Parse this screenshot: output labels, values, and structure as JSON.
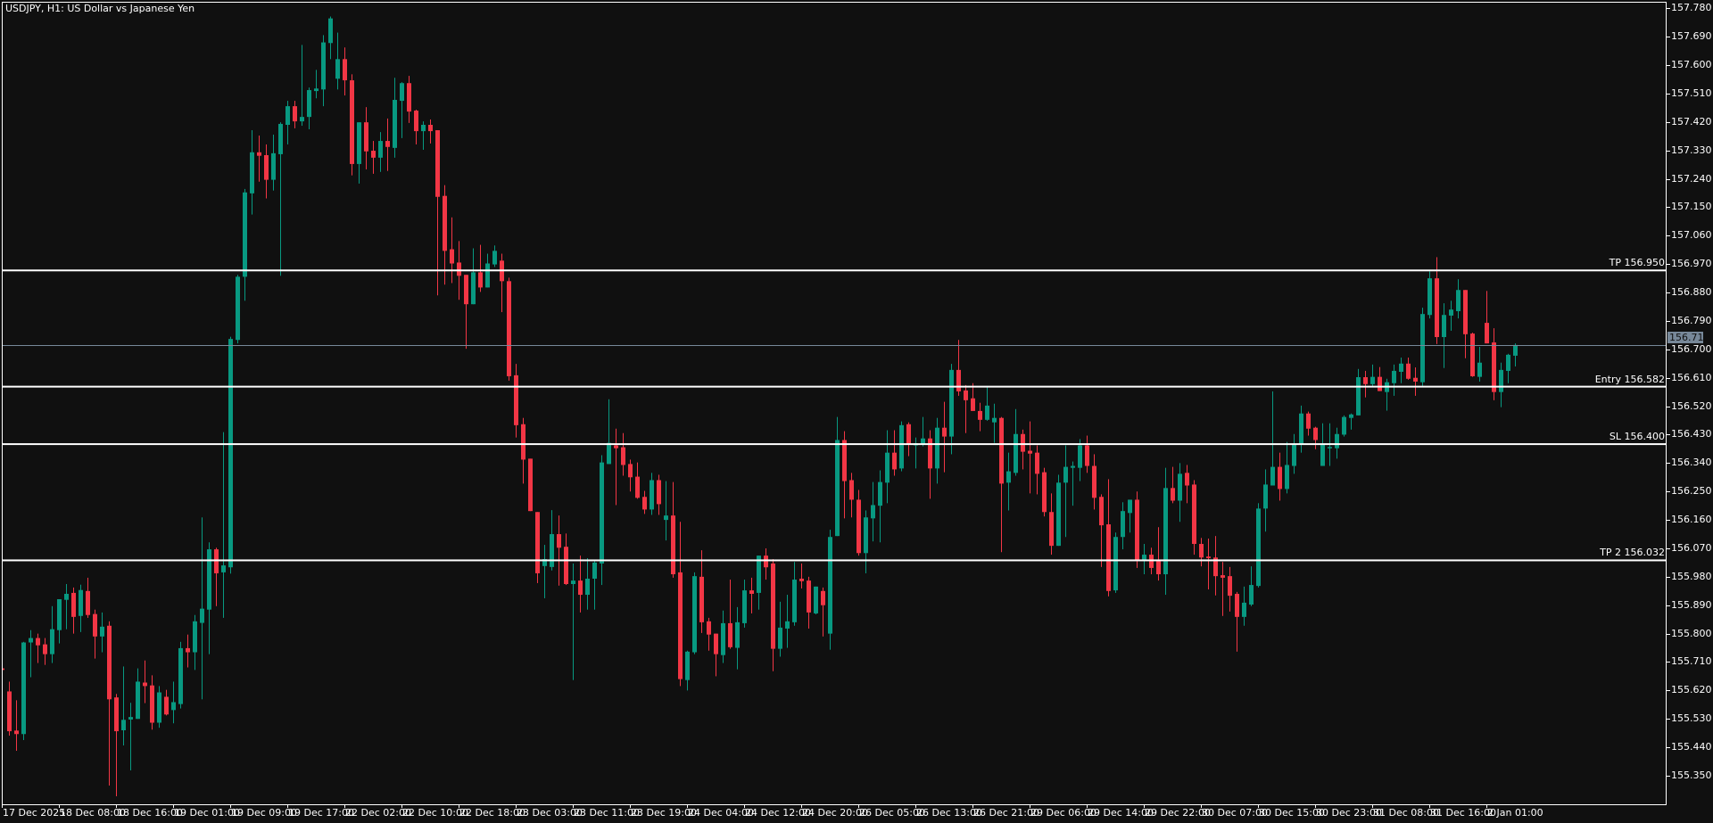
{
  "header": {
    "title": "USDJPY, H1:  US Dollar vs Japanese Yen"
  },
  "colors": {
    "background": "#101010",
    "bull": "#089981",
    "bear": "#f23645",
    "level_line": "#ffffff",
    "current_price_line": "#778899",
    "frame": "#ffffff"
  },
  "current_price": {
    "value": 156.715,
    "label": "156.715"
  },
  "levels": [
    {
      "name": "tp",
      "price": 156.95,
      "label": "TP 156.950"
    },
    {
      "name": "entry",
      "price": 156.582,
      "label": "Entry 156.582"
    },
    {
      "name": "sl",
      "price": 156.4,
      "label": "SL 156.400"
    },
    {
      "name": "tp2",
      "price": 156.032,
      "label": "TP 2 156.032"
    }
  ],
  "chart_data": {
    "type": "candlestick",
    "symbol": "USDJPY",
    "timeframe": "H1",
    "ylim": [
      155.26,
      157.8
    ],
    "grid": false,
    "price_axis_labels": [
      "157.780",
      "157.690",
      "157.600",
      "157.510",
      "157.420",
      "157.330",
      "157.240",
      "157.150",
      "157.060",
      "156.970",
      "156.880",
      "156.790",
      "156.700",
      "156.610",
      "156.520",
      "156.430",
      "156.340",
      "156.250",
      "156.160",
      "156.070",
      "155.980",
      "155.890",
      "155.800",
      "155.710",
      "155.620",
      "155.530",
      "155.440",
      "155.350"
    ],
    "time_axis_labels": [
      "17 Dec 2025",
      "18 Dec 08:00",
      "18 Dec 16:00",
      "19 Dec 01:00",
      "19 Dec 09:00",
      "19 Dec 17:00",
      "22 Dec 02:00",
      "22 Dec 10:00",
      "22 Dec 18:00",
      "23 Dec 03:00",
      "23 Dec 11:00",
      "23 Dec 19:00",
      "24 Dec 04:00",
      "24 Dec 12:00",
      "24 Dec 20:00",
      "26 Dec 05:00",
      "26 Dec 13:00",
      "26 Dec 21:00",
      "29 Dec 06:00",
      "29 Dec 14:00",
      "29 Dec 22:00",
      "30 Dec 07:00",
      "30 Dec 15:00",
      "30 Dec 23:00",
      "31 Dec 08:00",
      "31 Dec 16:00",
      "2 Jan 01:00"
    ],
    "bars_per_time_label": 8,
    "ohlc_fields": [
      "open",
      "high",
      "low",
      "close"
    ],
    "ohlc": [
      [
        155.69,
        155.692,
        155.684,
        155.685
      ],
      [
        155.617,
        155.648,
        155.477,
        155.491
      ],
      [
        155.493,
        155.589,
        155.429,
        155.482
      ],
      [
        155.482,
        155.774,
        155.463,
        155.772
      ],
      [
        155.772,
        155.811,
        155.662,
        155.786
      ],
      [
        155.786,
        155.8,
        155.707,
        155.763
      ],
      [
        155.766,
        155.786,
        155.701,
        155.735
      ],
      [
        155.735,
        155.887,
        155.707,
        155.814
      ],
      [
        155.811,
        155.909,
        155.769,
        155.909
      ],
      [
        155.907,
        155.957,
        155.814,
        155.926
      ],
      [
        155.929,
        155.946,
        155.8,
        155.853
      ],
      [
        155.856,
        155.955,
        155.805,
        155.938
      ],
      [
        155.935,
        155.977,
        155.85,
        155.859
      ],
      [
        155.862,
        155.876,
        155.721,
        155.791
      ],
      [
        155.791,
        155.867,
        155.741,
        155.822
      ],
      [
        155.825,
        155.839,
        155.319,
        155.592
      ],
      [
        155.598,
        155.609,
        155.285,
        155.491
      ],
      [
        155.494,
        155.696,
        155.446,
        155.527
      ],
      [
        155.528,
        155.581,
        155.367,
        155.536
      ],
      [
        155.53,
        155.69,
        155.53,
        155.648
      ],
      [
        155.645,
        155.715,
        155.58,
        155.634
      ],
      [
        155.636,
        155.668,
        155.496,
        155.518
      ],
      [
        155.518,
        155.634,
        155.502,
        155.614
      ],
      [
        155.6,
        155.622,
        155.541,
        155.544
      ],
      [
        155.558,
        155.648,
        155.516,
        155.583
      ],
      [
        155.577,
        155.774,
        155.563,
        155.754
      ],
      [
        155.754,
        155.797,
        155.693,
        155.741
      ],
      [
        155.741,
        155.859,
        155.685,
        155.839
      ],
      [
        155.834,
        156.168,
        155.592,
        155.879
      ],
      [
        155.876,
        156.089,
        155.735,
        156.067
      ],
      [
        156.067,
        156.072,
        155.887,
        155.991
      ],
      [
        155.994,
        156.438,
        155.85,
        156.016
      ],
      [
        156.01,
        156.74,
        155.99,
        156.733
      ],
      [
        156.73,
        156.936,
        156.719,
        156.93
      ],
      [
        156.93,
        157.208,
        156.854,
        157.197
      ],
      [
        157.194,
        157.394,
        157.127,
        157.324
      ],
      [
        157.324,
        157.377,
        157.231,
        157.313
      ],
      [
        157.315,
        157.349,
        157.178,
        157.237
      ],
      [
        157.237,
        157.38,
        157.203,
        157.321
      ],
      [
        157.318,
        157.419,
        156.933,
        157.414
      ],
      [
        157.411,
        157.487,
        157.349,
        157.47
      ],
      [
        157.47,
        157.487,
        157.4,
        157.422
      ],
      [
        157.422,
        157.664,
        157.408,
        157.436
      ],
      [
        157.436,
        157.529,
        157.397,
        157.521
      ],
      [
        157.518,
        157.585,
        157.495,
        157.526
      ],
      [
        157.523,
        157.695,
        157.47,
        157.672
      ],
      [
        157.67,
        157.754,
        157.619,
        157.748
      ],
      [
        157.557,
        157.703,
        157.523,
        157.619
      ],
      [
        157.619,
        157.656,
        157.504,
        157.552
      ],
      [
        157.552,
        157.571,
        157.251,
        157.287
      ],
      [
        157.287,
        157.419,
        157.225,
        157.419
      ],
      [
        157.419,
        157.467,
        157.27,
        157.327
      ],
      [
        157.329,
        157.36,
        157.256,
        157.307
      ],
      [
        157.307,
        157.388,
        157.262,
        157.36
      ],
      [
        157.36,
        157.431,
        157.265,
        157.341
      ],
      [
        157.338,
        157.56,
        157.307,
        157.49
      ],
      [
        157.487,
        157.546,
        157.369,
        157.543
      ],
      [
        157.543,
        157.566,
        157.417,
        157.453
      ],
      [
        157.456,
        157.459,
        157.349,
        157.391
      ],
      [
        157.391,
        157.422,
        157.332,
        157.411
      ],
      [
        157.411,
        157.428,
        157.352,
        157.391
      ],
      [
        157.394,
        157.394,
        156.871,
        157.183
      ],
      [
        157.186,
        157.22,
        156.905,
        157.012
      ],
      [
        157.017,
        157.118,
        156.91,
        156.972
      ],
      [
        156.975,
        157.043,
        156.857,
        156.933
      ],
      [
        156.936,
        156.936,
        156.702,
        156.843
      ],
      [
        156.843,
        157.02,
        156.843,
        156.944
      ],
      [
        156.944,
        157.031,
        156.882,
        156.896
      ],
      [
        156.896,
        157.003,
        156.896,
        156.972
      ],
      [
        156.969,
        157.029,
        156.961,
        157.012
      ],
      [
        156.981,
        157.003,
        156.818,
        156.916
      ],
      [
        156.916,
        156.927,
        156.601,
        156.615
      ],
      [
        156.618,
        156.654,
        156.421,
        156.46
      ],
      [
        156.463,
        156.483,
        156.275,
        156.351
      ],
      [
        156.354,
        156.354,
        156.188,
        156.188
      ],
      [
        156.185,
        156.185,
        155.96,
        155.991
      ],
      [
        156.014,
        156.081,
        155.912,
        156.036
      ],
      [
        156.011,
        156.191,
        156.0,
        156.115
      ],
      [
        156.115,
        156.174,
        155.952,
        156.072
      ],
      [
        156.075,
        156.117,
        155.954,
        155.957
      ],
      [
        155.957,
        156.022,
        155.653,
        155.968
      ],
      [
        155.968,
        156.047,
        155.867,
        155.923
      ],
      [
        155.923,
        156.039,
        155.876,
        155.974
      ],
      [
        155.974,
        156.03,
        155.876,
        156.025
      ],
      [
        156.022,
        156.365,
        155.954,
        156.342
      ],
      [
        156.337,
        156.542,
        156.337,
        156.404
      ],
      [
        156.396,
        156.449,
        156.207,
        156.387
      ],
      [
        156.39,
        156.435,
        156.3,
        156.334
      ],
      [
        156.337,
        156.351,
        156.25,
        156.295
      ],
      [
        156.297,
        156.342,
        156.227,
        156.23
      ],
      [
        156.233,
        156.252,
        156.179,
        156.193
      ],
      [
        156.193,
        156.309,
        156.176,
        156.286
      ],
      [
        156.286,
        156.303,
        156.176,
        156.21
      ],
      [
        156.16,
        156.283,
        156.095,
        156.174
      ],
      [
        156.174,
        156.28,
        155.977,
        155.988
      ],
      [
        155.994,
        156.154,
        155.634,
        155.656
      ],
      [
        155.653,
        155.746,
        155.62,
        155.743
      ],
      [
        155.741,
        155.994,
        155.735,
        155.982
      ],
      [
        155.98,
        156.064,
        155.802,
        155.836
      ],
      [
        155.839,
        155.85,
        155.746,
        155.797
      ],
      [
        155.8,
        155.8,
        155.665,
        155.735
      ],
      [
        155.732,
        155.873,
        155.707,
        155.833
      ],
      [
        155.833,
        155.971,
        155.752,
        155.757
      ],
      [
        155.755,
        155.884,
        155.687,
        155.836
      ],
      [
        155.833,
        155.971,
        155.819,
        155.937
      ],
      [
        155.937,
        155.977,
        155.864,
        155.926
      ],
      [
        155.929,
        156.047,
        155.876,
        156.047
      ],
      [
        156.047,
        156.07,
        155.971,
        156.01
      ],
      [
        156.022,
        156.036,
        155.681,
        155.752
      ],
      [
        155.752,
        155.901,
        155.727,
        155.819
      ],
      [
        155.816,
        155.923,
        155.755,
        155.839
      ],
      [
        155.836,
        156.027,
        155.825,
        155.971
      ],
      [
        155.974,
        156.022,
        155.943,
        155.966
      ],
      [
        155.968,
        155.98,
        155.816,
        155.867
      ],
      [
        155.864,
        155.949,
        155.861,
        155.949
      ],
      [
        155.935,
        155.946,
        155.791,
        155.89
      ],
      [
        155.8,
        156.129,
        155.749,
        156.106
      ],
      [
        156.109,
        156.486,
        156.109,
        156.413
      ],
      [
        156.413,
        156.441,
        156.165,
        156.283
      ],
      [
        156.286,
        156.309,
        156.168,
        156.224
      ],
      [
        156.224,
        156.255,
        156.047,
        156.055
      ],
      [
        156.055,
        156.19,
        155.991,
        156.168
      ],
      [
        156.165,
        156.28,
        156.092,
        156.207
      ],
      [
        156.205,
        156.317,
        156.089,
        156.28
      ],
      [
        156.278,
        156.444,
        156.213,
        156.373
      ],
      [
        156.373,
        156.444,
        156.3,
        156.32
      ],
      [
        156.323,
        156.472,
        156.314,
        156.46
      ],
      [
        156.463,
        156.469,
        156.362,
        156.401
      ],
      [
        156.396,
        156.421,
        156.323,
        156.403
      ],
      [
        156.401,
        156.486,
        156.393,
        156.418
      ],
      [
        156.418,
        156.444,
        156.227,
        156.323
      ],
      [
        156.323,
        156.483,
        156.275,
        156.452
      ],
      [
        156.452,
        156.534,
        156.311,
        156.424
      ],
      [
        156.424,
        156.654,
        156.368,
        156.635
      ],
      [
        156.635,
        156.73,
        156.553,
        156.567
      ],
      [
        156.57,
        156.587,
        156.435,
        156.539
      ],
      [
        156.545,
        156.593,
        156.505,
        156.505
      ],
      [
        156.505,
        156.531,
        156.441,
        156.477
      ],
      [
        156.477,
        156.584,
        156.474,
        156.522
      ],
      [
        156.469,
        156.528,
        156.404,
        156.483
      ],
      [
        156.483,
        156.486,
        156.058,
        156.275
      ],
      [
        156.278,
        156.373,
        156.19,
        156.314
      ],
      [
        156.309,
        156.511,
        156.3,
        156.432
      ],
      [
        156.432,
        156.446,
        156.32,
        156.376
      ],
      [
        156.379,
        156.472,
        156.244,
        156.37
      ],
      [
        156.373,
        156.396,
        156.241,
        156.306
      ],
      [
        156.311,
        156.325,
        156.171,
        156.185
      ],
      [
        156.185,
        156.244,
        156.05,
        156.078
      ],
      [
        156.078,
        156.303,
        156.078,
        156.278
      ],
      [
        156.278,
        156.396,
        156.106,
        156.328
      ],
      [
        156.325,
        156.345,
        156.205,
        156.331
      ],
      [
        156.325,
        156.416,
        156.283,
        156.396
      ],
      [
        156.396,
        156.427,
        156.309,
        156.331
      ],
      [
        156.331,
        156.368,
        156.193,
        156.23
      ],
      [
        156.233,
        156.241,
        156.011,
        156.143
      ],
      [
        156.146,
        156.289,
        155.918,
        155.935
      ],
      [
        155.937,
        156.12,
        155.929,
        156.106
      ],
      [
        156.106,
        156.216,
        156.067,
        156.188
      ],
      [
        156.182,
        156.224,
        156.12,
        156.224
      ],
      [
        156.224,
        156.25,
        156.008,
        156.03
      ],
      [
        156.03,
        156.084,
        155.988,
        156.05
      ],
      [
        156.05,
        156.072,
        155.988,
        156.008
      ],
      [
        156.03,
        156.137,
        155.968,
        155.988
      ],
      [
        155.988,
        156.325,
        155.923,
        156.261
      ],
      [
        156.261,
        156.328,
        156.213,
        156.221
      ],
      [
        156.221,
        156.34,
        156.154,
        156.306
      ],
      [
        156.309,
        156.334,
        156.213,
        156.269
      ],
      [
        156.272,
        156.286,
        156.05,
        156.084
      ],
      [
        156.084,
        156.103,
        156.013,
        156.041
      ],
      [
        156.044,
        156.101,
        155.94,
        156.039
      ],
      [
        156.041,
        156.109,
        155.921,
        155.982
      ],
      [
        155.985,
        156.027,
        155.856,
        155.977
      ],
      [
        155.982,
        156.011,
        155.87,
        155.92
      ],
      [
        155.926,
        155.932,
        155.743,
        155.853
      ],
      [
        155.853,
        155.949,
        155.825,
        155.898
      ],
      [
        155.892,
        156.013,
        155.887,
        155.954
      ],
      [
        155.951,
        156.213,
        155.946,
        156.196
      ],
      [
        156.196,
        156.32,
        156.123,
        156.272
      ],
      [
        156.269,
        156.567,
        156.269,
        156.328
      ],
      [
        156.328,
        156.373,
        156.221,
        156.258
      ],
      [
        156.258,
        156.407,
        156.244,
        156.334
      ],
      [
        156.331,
        156.432,
        156.306,
        156.399
      ],
      [
        156.399,
        156.522,
        156.373,
        156.497
      ],
      [
        156.497,
        156.503,
        156.427,
        156.449
      ],
      [
        156.452,
        156.455,
        156.384,
        156.413
      ],
      [
        156.331,
        156.466,
        156.331,
        156.399
      ],
      [
        156.389,
        156.466,
        156.331,
        156.391
      ],
      [
        156.387,
        156.452,
        156.354,
        156.432
      ],
      [
        156.43,
        156.491,
        156.424,
        156.486
      ],
      [
        156.483,
        156.497,
        156.446,
        156.494
      ],
      [
        156.491,
        156.638,
        156.491,
        156.612
      ],
      [
        156.612,
        156.632,
        156.548,
        156.59
      ],
      [
        156.59,
        156.652,
        156.582,
        156.613
      ],
      [
        156.613,
        156.644,
        156.568,
        156.568
      ],
      [
        156.565,
        156.607,
        156.506,
        156.596
      ],
      [
        156.593,
        156.652,
        156.553,
        156.632
      ],
      [
        156.629,
        156.674,
        156.593,
        156.655
      ],
      [
        156.655,
        156.674,
        156.604,
        156.607
      ],
      [
        156.61,
        156.643,
        156.553,
        156.598
      ],
      [
        156.596,
        156.832,
        156.584,
        156.812
      ],
      [
        156.809,
        156.947,
        156.798,
        156.925
      ],
      [
        156.925,
        156.992,
        156.717,
        156.739
      ],
      [
        156.739,
        156.846,
        156.641,
        156.809
      ],
      [
        156.807,
        156.854,
        156.759,
        156.826
      ],
      [
        156.821,
        156.922,
        156.798,
        156.888
      ],
      [
        156.888,
        156.888,
        156.672,
        156.748
      ],
      [
        156.75,
        156.753,
        156.613,
        156.615
      ],
      [
        156.613,
        156.708,
        156.598,
        156.658
      ],
      [
        156.784,
        156.885,
        156.719,
        156.719
      ],
      [
        156.722,
        156.767,
        156.539,
        156.565
      ],
      [
        156.565,
        156.658,
        156.517,
        156.635
      ],
      [
        156.632,
        156.686,
        156.593,
        156.683
      ],
      [
        156.68,
        156.719,
        156.646,
        156.714
      ]
    ]
  }
}
